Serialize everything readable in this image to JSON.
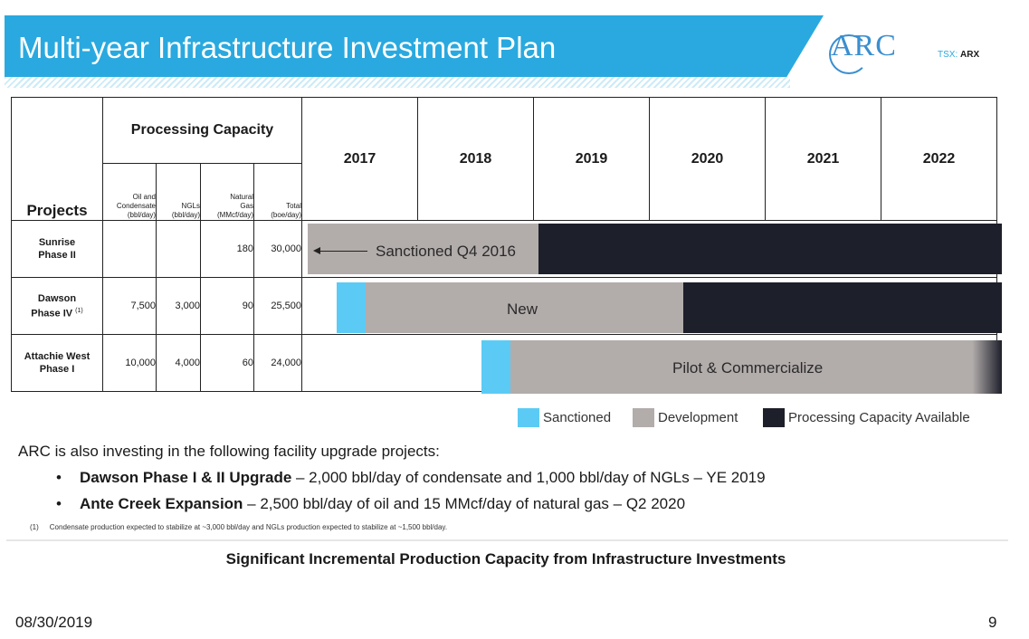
{
  "header": {
    "title": "Multi-year Infrastructure Investment Plan",
    "logo_text": "ARC",
    "ticker_prefix": "TSX:",
    "ticker_symbol": "ARX"
  },
  "table": {
    "projects_header": "Projects",
    "capacity_header": "Processing Capacity",
    "sub_headers": [
      [
        "Oil and",
        "Condensate",
        "(bbl/day)"
      ],
      [
        "NGLs",
        "(bbl/day)"
      ],
      [
        "Natural",
        "Gas",
        "(MMcf/day)"
      ],
      [
        "Total",
        "(boe/day)"
      ]
    ],
    "years": [
      "2017",
      "2018",
      "2019",
      "2020",
      "2021",
      "2022"
    ],
    "rows": [
      {
        "name_line1": "Sunrise",
        "name_line2": "Phase II",
        "footnote_mark": "",
        "oil": "",
        "ngl": "",
        "gas": "180",
        "total": "30,000"
      },
      {
        "name_line1": "Dawson",
        "name_line2": "Phase IV",
        "footnote_mark": "(1)",
        "oil": "7,500",
        "ngl": "3,000",
        "gas": "90",
        "total": "25,500"
      },
      {
        "name_line1": "Attachie West",
        "name_line2": "Phase I",
        "footnote_mark": "",
        "oil": "10,000",
        "ngl": "4,000",
        "gas": "60",
        "total": "24,000"
      }
    ],
    "bar_labels": {
      "sunrise": "Sanctioned Q4 2016",
      "dawson": "New",
      "attachie": "Pilot & Commercialize"
    }
  },
  "legend": {
    "sanctioned": "Sanctioned",
    "development": "Development",
    "available": "Processing Capacity Available"
  },
  "colors": {
    "banner": "#29a9df",
    "sanctioned": "#5bcbf5",
    "development": "#b2acab",
    "available": "#1d1f2a"
  },
  "body": {
    "intro": "ARC is also investing in the following facility upgrade projects:",
    "bullets": [
      {
        "bold": "Dawson Phase I & II Upgrade",
        "rest": " – 2,000 bbl/day of condensate and 1,000 bbl/day of NGLs – YE 2019"
      },
      {
        "bold": "Ante Creek Expansion",
        "rest": " – 2,500 bbl/day of oil and 15 MMcf/day of natural gas – Q2 2020"
      }
    ],
    "bullet_char": "•",
    "footnote_num": "(1)",
    "footnote_text": "Condensate production expected to stabilize at ~3,000 bbl/day and NGLs production expected to stabilize at ~1,500 bbl/day.",
    "tagline": "Significant Incremental Production Capacity from Infrastructure Investments"
  },
  "footer": {
    "date": "08/30/2019",
    "page": "9"
  }
}
